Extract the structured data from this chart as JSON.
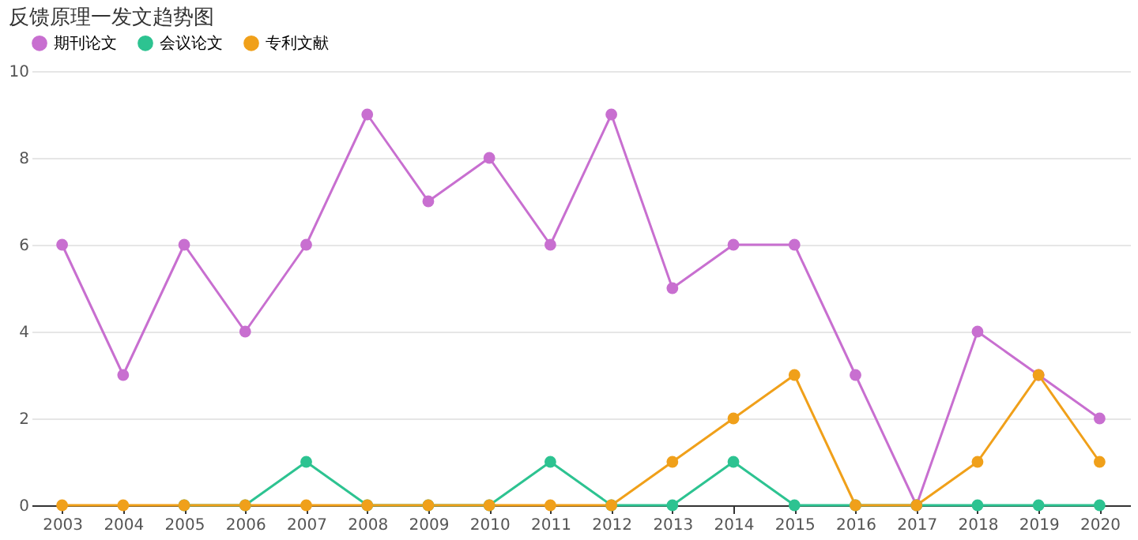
{
  "chart_data": {
    "type": "line",
    "title": "反馈原理一发文趋势图",
    "categories": [
      "2003",
      "2004",
      "2005",
      "2006",
      "2007",
      "2008",
      "2009",
      "2010",
      "2011",
      "2012",
      "2013",
      "2014",
      "2015",
      "2016",
      "2017",
      "2018",
      "2019",
      "2020"
    ],
    "series": [
      {
        "name": "期刊论文",
        "color": "#c86fd0",
        "values": [
          6,
          3,
          6,
          4,
          6,
          9,
          7,
          8,
          6,
          9,
          5,
          6,
          6,
          3,
          0,
          4,
          3,
          2
        ]
      },
      {
        "name": "会议论文",
        "color": "#2dc391",
        "values": [
          null,
          null,
          0,
          0,
          1,
          0,
          0,
          0,
          1,
          0,
          0,
          1,
          0,
          0,
          0,
          0,
          0,
          0
        ]
      },
      {
        "name": "专利文献",
        "color": "#f0a01a",
        "values": [
          0,
          0,
          0,
          0,
          0,
          0,
          0,
          0,
          0,
          0,
          1,
          2,
          3,
          0,
          0,
          1,
          3,
          1
        ]
      }
    ],
    "ylim": [
      0,
      10
    ],
    "yticks": [
      0,
      2,
      4,
      6,
      8,
      10
    ],
    "grid": "y",
    "legend": "top left",
    "marker": "circle",
    "line_style": "solid"
  }
}
